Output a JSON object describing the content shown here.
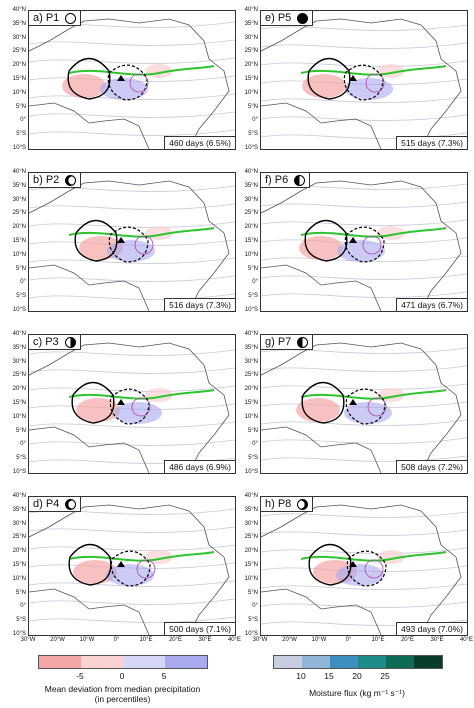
{
  "panels": [
    {
      "label": "a) P1",
      "phase": "new",
      "days": "460 days (6.5%)"
    },
    {
      "label": "b) P2",
      "phase": "cres-r",
      "days": "516 days (7.3%)"
    },
    {
      "label": "c) P3",
      "phase": "half-r",
      "days": "486 days (6.9%)"
    },
    {
      "label": "d) P4",
      "phase": "cres-full-r",
      "days": "500 days (7.1%)"
    },
    {
      "label": "e) P5",
      "phase": "full",
      "days": "515 days (7.3%)"
    },
    {
      "label": "f) P6",
      "phase": "cres-full-l",
      "days": "471 days (6.7%)"
    },
    {
      "label": "g) P7",
      "phase": "half-l",
      "days": "508 days (7.2%)"
    },
    {
      "label": "h) P8",
      "phase": "cres-l",
      "days": "493 days (7.0%)"
    }
  ],
  "lat_labels": [
    "40°N",
    "35°N",
    "30°N",
    "25°N",
    "20°N",
    "15°N",
    "10°N",
    "5°N",
    "0°",
    "5°S",
    "10°S"
  ],
  "lon_labels": [
    "30°W",
    "20°W",
    "10°W",
    "0°",
    "10°E",
    "20°E",
    "30°E",
    "40°E"
  ],
  "precip_colorbar": {
    "colors": [
      "#f4a6a6",
      "#f9d2d2",
      "#d6d6f7",
      "#a9a9ee"
    ],
    "ticks": [
      "-5",
      "0",
      "5"
    ],
    "title_line1": "Mean deviation from median precipitation",
    "title_line2": "(in percentiles)"
  },
  "flux_colorbar": {
    "colors": [
      "#c9cde0",
      "#8fb6d6",
      "#3c8fbf",
      "#1e8b8b",
      "#0e6b55",
      "#083d2a"
    ],
    "ticks": [
      "10",
      "15",
      "20",
      "25"
    ],
    "title": "Moisture flux (kg m⁻¹ s⁻¹)"
  }
}
